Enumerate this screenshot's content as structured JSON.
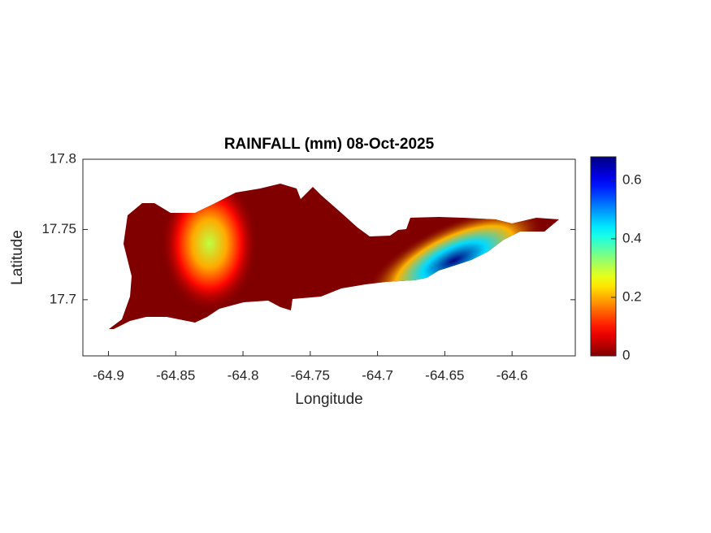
{
  "chart_data": {
    "type": "heatmap",
    "title": "RAINFALL (mm) 08-Oct-2025",
    "xlabel": "Longitude",
    "ylabel": "Latitude",
    "xlim": [
      -64.919,
      -64.553
    ],
    "xticks": [
      -64.9,
      -64.85,
      -64.8,
      -64.75,
      -64.7,
      -64.65,
      -64.6
    ],
    "ylim": [
      17.66,
      17.8
    ],
    "yticks": [
      17.7,
      17.75,
      17.8
    ],
    "clim": [
      0,
      0.68
    ],
    "cticks": [
      0,
      0.2,
      0.4,
      0.6
    ],
    "colormap": "jet",
    "points": [
      {
        "x": -64.825,
        "y": 17.74,
        "value": 0.3
      },
      {
        "x": -64.643,
        "y": 17.728,
        "value": 0.68
      }
    ]
  }
}
